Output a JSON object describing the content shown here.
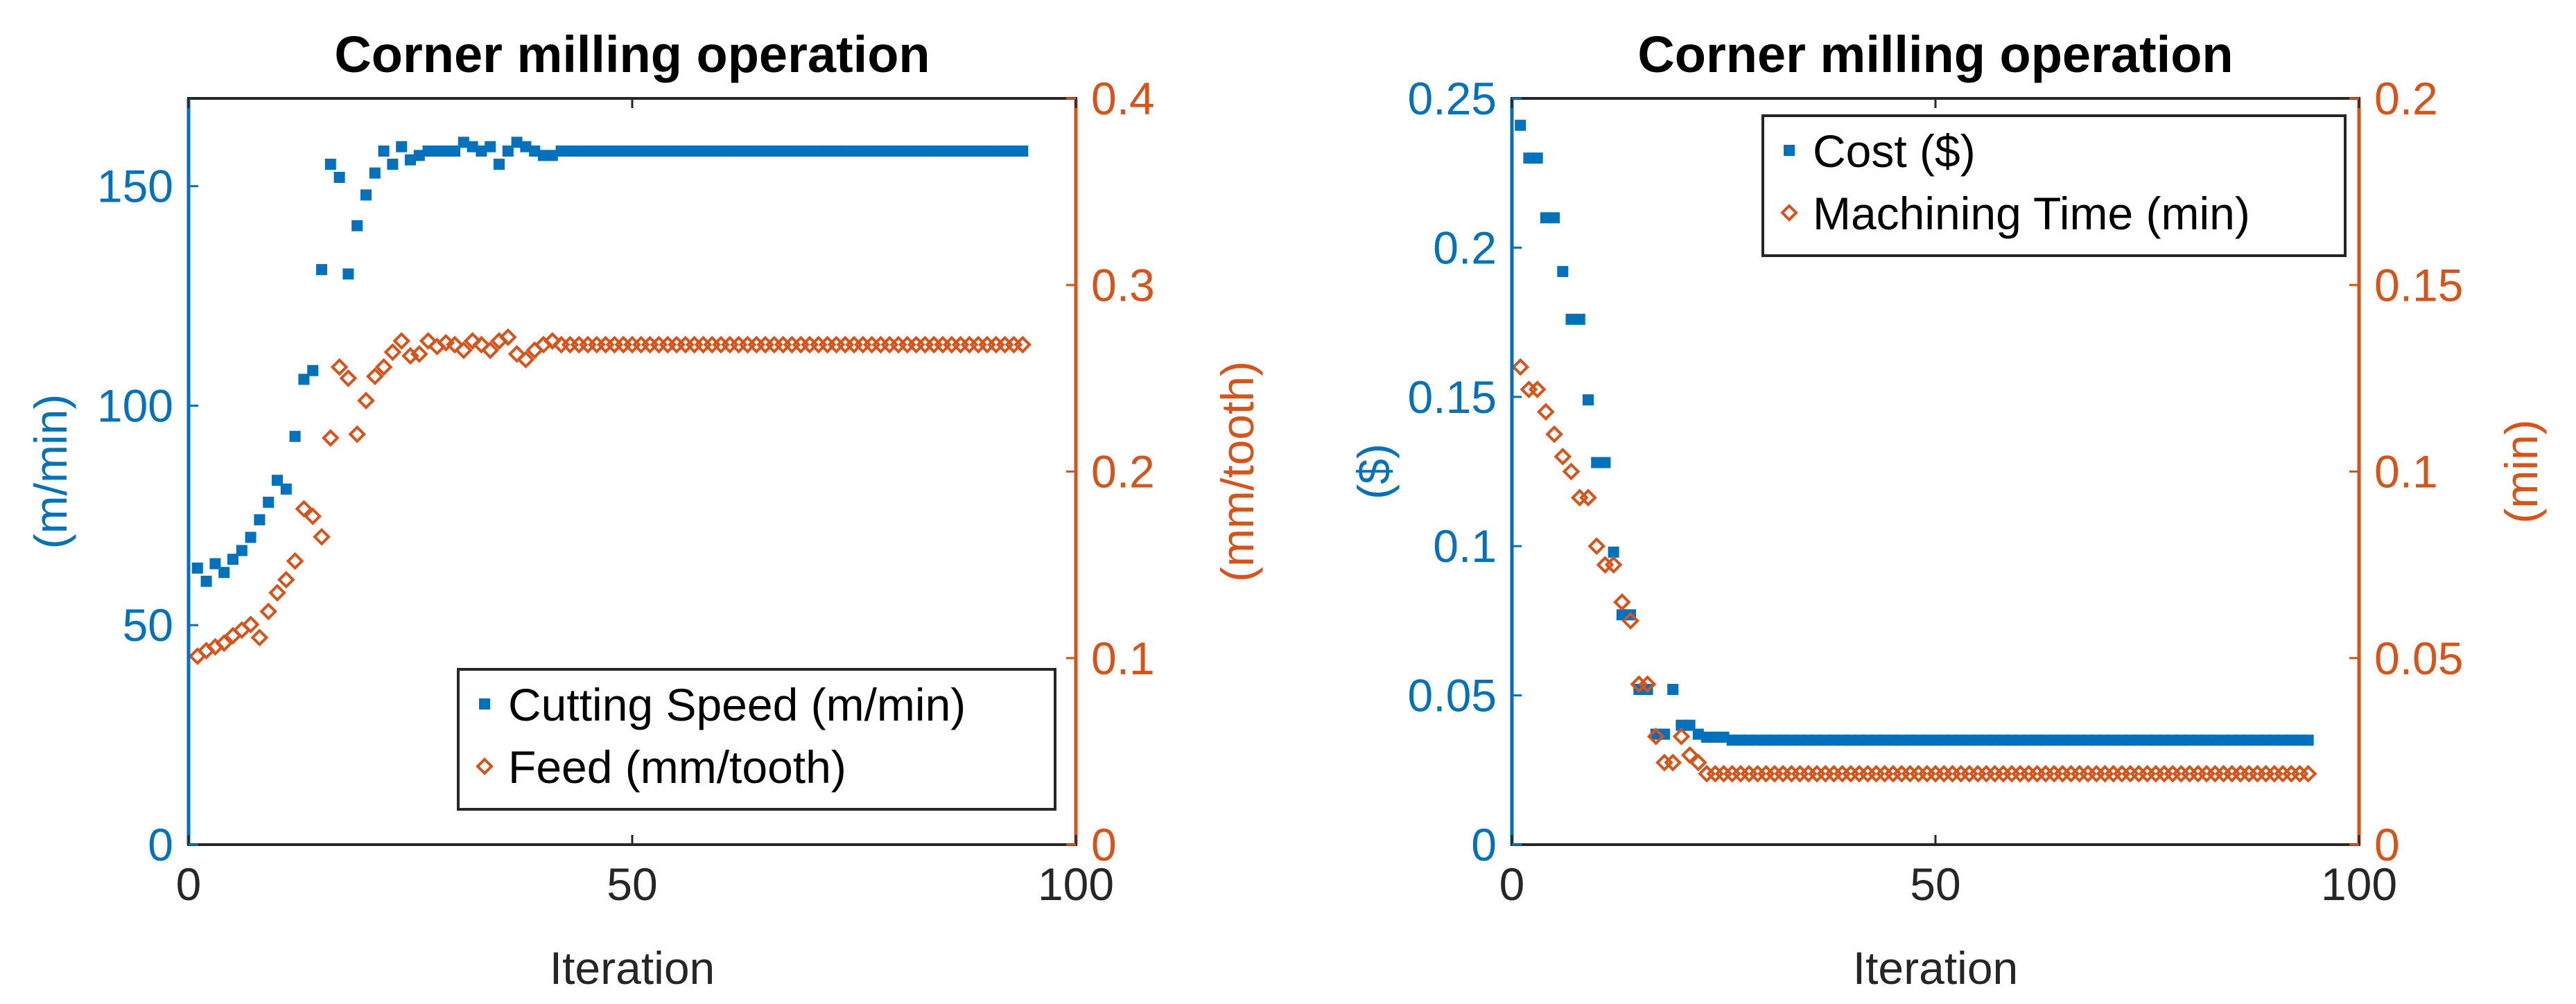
{
  "colors": {
    "left_axis": "#0072BD",
    "right_axis": "#D95319",
    "frame": "#262626"
  },
  "chart_data": [
    {
      "type": "scatter",
      "title": "Corner milling operation",
      "xlabel": "Iteration",
      "ylabel_left": "(m/min)",
      "ylabel_right": "(mm/tooth)",
      "xlim": [
        0,
        100
      ],
      "ylim_left": [
        0,
        170
      ],
      "ylim_right": [
        0,
        0.4
      ],
      "x_ticks": [
        "0",
        "50",
        "100"
      ],
      "y_ticks_left": [
        "0",
        "50",
        "100",
        "150"
      ],
      "y_ticks_right": [
        "0",
        "0.1",
        "0.2",
        "0.3",
        "0.4"
      ],
      "legend_position": "bottom-right",
      "series": [
        {
          "name": "Cutting Speed (m/min)",
          "axis": "left",
          "marker": "square",
          "x": [
            1,
            2,
            3,
            4,
            5,
            6,
            7,
            8,
            9,
            10,
            11,
            12,
            13,
            14,
            15,
            16,
            17,
            18,
            19,
            20,
            21,
            22,
            23,
            24,
            25,
            26,
            27,
            28,
            29,
            30,
            31,
            32,
            33,
            34,
            35,
            36,
            37,
            38,
            39,
            40,
            41,
            42,
            43,
            44,
            45,
            46,
            47,
            48,
            49,
            50,
            51,
            52,
            53,
            54,
            55,
            56,
            57,
            58,
            59,
            60,
            61,
            62,
            63,
            64,
            65,
            66,
            67,
            68,
            69,
            70,
            71,
            72,
            73,
            74,
            75,
            76,
            77,
            78,
            79,
            80,
            81,
            82,
            83,
            84,
            85,
            86,
            87,
            88,
            89,
            90,
            91,
            92,
            93,
            94
          ],
          "y": [
            63,
            60,
            64,
            62,
            65,
            67,
            70,
            74,
            78,
            83,
            81,
            93,
            106,
            108,
            131,
            155,
            152,
            130,
            141,
            148,
            153,
            158,
            155,
            159,
            156,
            157,
            158,
            158,
            158,
            158,
            160,
            159,
            158,
            159,
            155,
            158,
            160,
            159,
            158,
            157,
            157,
            158,
            158,
            158,
            158,
            158,
            158,
            158,
            158,
            158,
            158,
            158,
            158,
            158,
            158,
            158,
            158,
            158,
            158,
            158,
            158,
            158,
            158,
            158,
            158,
            158,
            158,
            158,
            158,
            158,
            158,
            158,
            158,
            158,
            158,
            158,
            158,
            158,
            158,
            158,
            158,
            158,
            158,
            158,
            158,
            158,
            158,
            158,
            158,
            158,
            158,
            158,
            158,
            158
          ]
        },
        {
          "name": "Feed (mm/tooth)",
          "axis": "right",
          "marker": "diamond",
          "x": [
            1,
            2,
            3,
            4,
            5,
            6,
            7,
            8,
            9,
            10,
            11,
            12,
            13,
            14,
            15,
            16,
            17,
            18,
            19,
            20,
            21,
            22,
            23,
            24,
            25,
            26,
            27,
            28,
            29,
            30,
            31,
            32,
            33,
            34,
            35,
            36,
            37,
            38,
            39,
            40,
            41,
            42,
            43,
            44,
            45,
            46,
            47,
            48,
            49,
            50,
            51,
            52,
            53,
            54,
            55,
            56,
            57,
            58,
            59,
            60,
            61,
            62,
            63,
            64,
            65,
            66,
            67,
            68,
            69,
            70,
            71,
            72,
            73,
            74,
            75,
            76,
            77,
            78,
            79,
            80,
            81,
            82,
            83,
            84,
            85,
            86,
            87,
            88,
            89,
            90,
            91,
            92,
            93,
            94
          ],
          "y": [
            0.101,
            0.104,
            0.106,
            0.108,
            0.112,
            0.115,
            0.118,
            0.111,
            0.125,
            0.135,
            0.142,
            0.152,
            0.18,
            0.176,
            0.165,
            0.218,
            0.256,
            0.25,
            0.22,
            0.238,
            0.251,
            0.256,
            0.264,
            0.27,
            0.262,
            0.263,
            0.27,
            0.267,
            0.269,
            0.268,
            0.265,
            0.27,
            0.268,
            0.265,
            0.27,
            0.272,
            0.263,
            0.26,
            0.265,
            0.268,
            0.27,
            0.268,
            0.268,
            0.268,
            0.268,
            0.268,
            0.268,
            0.268,
            0.268,
            0.268,
            0.268,
            0.268,
            0.268,
            0.268,
            0.268,
            0.268,
            0.268,
            0.268,
            0.268,
            0.268,
            0.268,
            0.268,
            0.268,
            0.268,
            0.268,
            0.268,
            0.268,
            0.268,
            0.268,
            0.268,
            0.268,
            0.268,
            0.268,
            0.268,
            0.268,
            0.268,
            0.268,
            0.268,
            0.268,
            0.268,
            0.268,
            0.268,
            0.268,
            0.268,
            0.268,
            0.268,
            0.268,
            0.268,
            0.268,
            0.268,
            0.268,
            0.268,
            0.268,
            0.268
          ]
        }
      ]
    },
    {
      "type": "scatter",
      "title": "Corner milling operation",
      "xlabel": "Iteration",
      "ylabel_left": "($)",
      "ylabel_right": "(min)",
      "xlim": [
        0,
        100
      ],
      "ylim_left": [
        0,
        0.25
      ],
      "ylim_right": [
        0,
        0.2
      ],
      "x_ticks": [
        "0",
        "50",
        "100"
      ],
      "y_ticks_left": [
        "0",
        "0.05",
        "0.1",
        "0.15",
        "0.2",
        "0.25"
      ],
      "y_ticks_right": [
        "0",
        "0.05",
        "0.1",
        "0.15",
        "0.2"
      ],
      "legend_position": "top-right",
      "series": [
        {
          "name": "Cost ($)",
          "axis": "left",
          "marker": "square",
          "x": [
            1,
            2,
            3,
            4,
            5,
            6,
            7,
            8,
            9,
            10,
            11,
            12,
            13,
            14,
            15,
            16,
            17,
            18,
            19,
            20,
            21,
            22,
            23,
            24,
            25,
            26,
            27,
            28,
            29,
            30,
            31,
            32,
            33,
            34,
            35,
            36,
            37,
            38,
            39,
            40,
            41,
            42,
            43,
            44,
            45,
            46,
            47,
            48,
            49,
            50,
            51,
            52,
            53,
            54,
            55,
            56,
            57,
            58,
            59,
            60,
            61,
            62,
            63,
            64,
            65,
            66,
            67,
            68,
            69,
            70,
            71,
            72,
            73,
            74,
            75,
            76,
            77,
            78,
            79,
            80,
            81,
            82,
            83,
            84,
            85,
            86,
            87,
            88,
            89,
            90,
            91,
            92,
            93,
            94
          ],
          "y": [
            0.241,
            0.23,
            0.23,
            0.21,
            0.21,
            0.192,
            0.176,
            0.176,
            0.149,
            0.128,
            0.128,
            0.098,
            0.077,
            0.077,
            0.052,
            0.052,
            0.037,
            0.037,
            0.052,
            0.04,
            0.04,
            0.037,
            0.036,
            0.036,
            0.036,
            0.035,
            0.035,
            0.035,
            0.035,
            0.035,
            0.035,
            0.035,
            0.035,
            0.035,
            0.035,
            0.035,
            0.035,
            0.035,
            0.035,
            0.035,
            0.035,
            0.035,
            0.035,
            0.035,
            0.035,
            0.035,
            0.035,
            0.035,
            0.035,
            0.035,
            0.035,
            0.035,
            0.035,
            0.035,
            0.035,
            0.035,
            0.035,
            0.035,
            0.035,
            0.035,
            0.035,
            0.035,
            0.035,
            0.035,
            0.035,
            0.035,
            0.035,
            0.035,
            0.035,
            0.035,
            0.035,
            0.035,
            0.035,
            0.035,
            0.035,
            0.035,
            0.035,
            0.035,
            0.035,
            0.035,
            0.035,
            0.035,
            0.035,
            0.035,
            0.035,
            0.035,
            0.035,
            0.035,
            0.035,
            0.035,
            0.035,
            0.035,
            0.035,
            0.035
          ]
        },
        {
          "name": "Machining Time (min)",
          "axis": "right",
          "marker": "diamond",
          "x": [
            1,
            2,
            3,
            4,
            5,
            6,
            7,
            8,
            9,
            10,
            11,
            12,
            13,
            14,
            15,
            16,
            17,
            18,
            19,
            20,
            21,
            22,
            23,
            24,
            25,
            26,
            27,
            28,
            29,
            30,
            31,
            32,
            33,
            34,
            35,
            36,
            37,
            38,
            39,
            40,
            41,
            42,
            43,
            44,
            45,
            46,
            47,
            48,
            49,
            50,
            51,
            52,
            53,
            54,
            55,
            56,
            57,
            58,
            59,
            60,
            61,
            62,
            63,
            64,
            65,
            66,
            67,
            68,
            69,
            70,
            71,
            72,
            73,
            74,
            75,
            76,
            77,
            78,
            79,
            80,
            81,
            82,
            83,
            84,
            85,
            86,
            87,
            88,
            89,
            90,
            91,
            92,
            93,
            94
          ],
          "y": [
            0.128,
            0.122,
            0.122,
            0.116,
            0.11,
            0.104,
            0.1,
            0.093,
            0.093,
            0.08,
            0.075,
            0.075,
            0.065,
            0.06,
            0.043,
            0.043,
            0.029,
            0.022,
            0.022,
            0.029,
            0.024,
            0.022,
            0.019,
            0.019,
            0.019,
            0.019,
            0.019,
            0.019,
            0.019,
            0.019,
            0.019,
            0.019,
            0.019,
            0.019,
            0.019,
            0.019,
            0.019,
            0.019,
            0.019,
            0.019,
            0.019,
            0.019,
            0.019,
            0.019,
            0.019,
            0.019,
            0.019,
            0.019,
            0.019,
            0.019,
            0.019,
            0.019,
            0.019,
            0.019,
            0.019,
            0.019,
            0.019,
            0.019,
            0.019,
            0.019,
            0.019,
            0.019,
            0.019,
            0.019,
            0.019,
            0.019,
            0.019,
            0.019,
            0.019,
            0.019,
            0.019,
            0.019,
            0.019,
            0.019,
            0.019,
            0.019,
            0.019,
            0.019,
            0.019,
            0.019,
            0.019,
            0.019,
            0.019,
            0.019,
            0.019,
            0.019,
            0.019,
            0.019,
            0.019,
            0.019,
            0.019,
            0.019,
            0.019,
            0.019
          ]
        }
      ]
    }
  ]
}
